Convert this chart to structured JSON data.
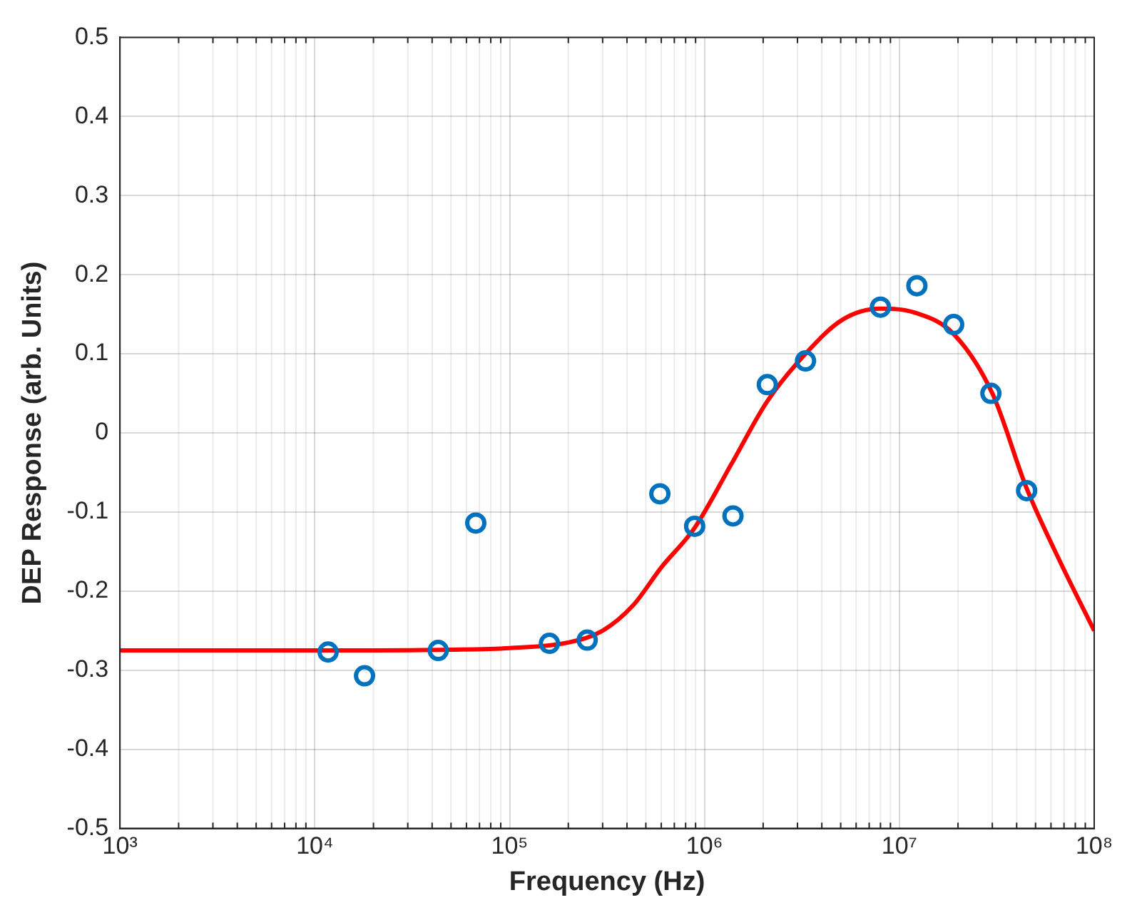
{
  "chart_data": {
    "type": "scatter",
    "xlabel": "Frequency (Hz)",
    "ylabel": "DEP Response (arb. Units)",
    "log": "x",
    "grid": true,
    "xlim": [
      1000,
      100000000
    ],
    "ylim": [
      -0.5,
      0.5
    ],
    "xticks": [
      {
        "value": 1000,
        "label": "10³"
      },
      {
        "value": 10000,
        "label": "10⁴"
      },
      {
        "value": 100000,
        "label": "10⁵"
      },
      {
        "value": 1000000,
        "label": "10⁶"
      },
      {
        "value": 10000000,
        "label": "10⁷"
      },
      {
        "value": 100000000,
        "label": "10⁸"
      }
    ],
    "yticks": [
      -0.5,
      -0.4,
      -0.3,
      -0.2,
      -0.1,
      0,
      0.1,
      0.2,
      0.3,
      0.4,
      0.5
    ],
    "series": [
      {
        "type": "line",
        "color": "#ff0000",
        "marker": "none",
        "line_style": "solid",
        "x": [
          1000,
          10000,
          50000,
          100000,
          200000,
          300000,
          430000,
          600000,
          890000,
          1370000,
          2100000,
          3300000,
          5100000,
          8000000,
          12000000,
          19000000,
          30000000,
          45000000,
          66000000,
          100000000
        ],
        "values": [
          -0.275,
          -0.275,
          -0.274,
          -0.272,
          -0.265,
          -0.25,
          -0.218,
          -0.17,
          -0.12,
          -0.04,
          0.04,
          0.1,
          0.143,
          0.157,
          0.152,
          0.125,
          0.05,
          -0.07,
          -0.16,
          -0.25
        ]
      },
      {
        "type": "scatter",
        "color": "#0072bd",
        "marker": "circle",
        "x": [
          11700,
          18000,
          43000,
          67000,
          160000,
          250000,
          590000,
          890000,
          1400000,
          2100000,
          3300000,
          8000000,
          12300000,
          19000000,
          29500000,
          45000000
        ],
        "values": [
          -0.277,
          -0.307,
          -0.275,
          -0.114,
          -0.266,
          -0.262,
          -0.077,
          -0.118,
          -0.105,
          0.061,
          0.091,
          0.159,
          0.186,
          0.137,
          0.05,
          -0.073
        ]
      }
    ]
  }
}
